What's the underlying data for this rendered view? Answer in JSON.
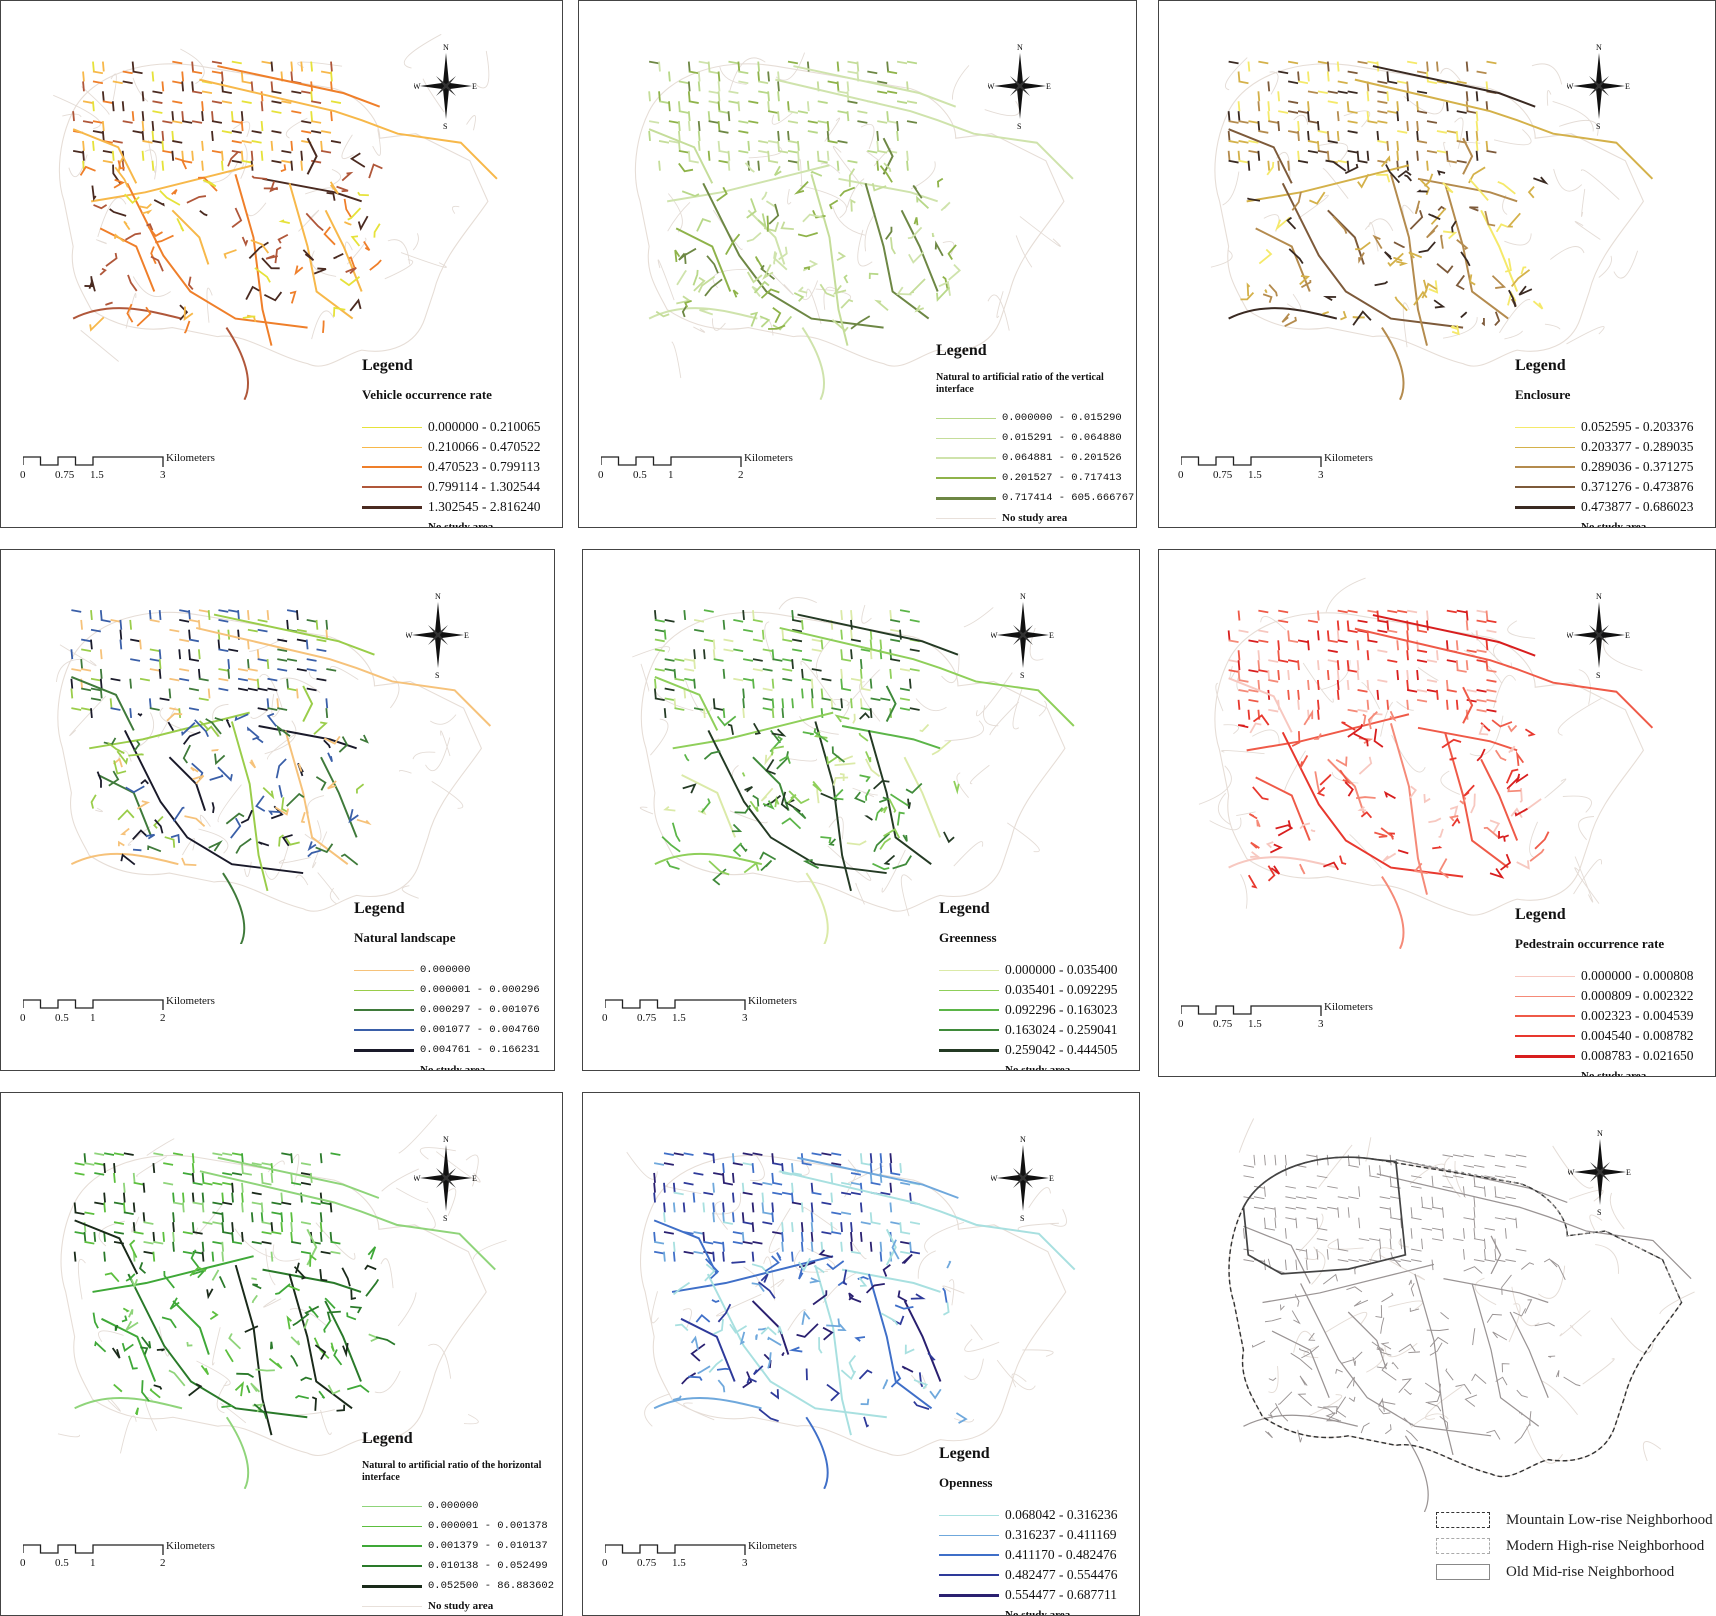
{
  "common": {
    "legend_title": "Legend",
    "no_study_area": "No study area",
    "compass": {
      "n": "N",
      "s": "S",
      "e": "E",
      "w": "W"
    },
    "scale_unit": "Kilometers"
  },
  "panels": [
    {
      "id": "vehicle",
      "subtitle": "Vehicle occurrence rate",
      "classes": [
        "0.000000 - 0.210065",
        "0.210066 - 0.470522",
        "0.470523 - 0.799113",
        "0.799114 - 1.302544",
        "1.302545 - 2.816240"
      ],
      "colors": [
        "#e6e23a",
        "#f7b84a",
        "#ef7f2a",
        "#b0573a",
        "#4a2a20"
      ],
      "scale_labels": [
        "0",
        "0.75",
        "1.5",
        "3"
      ]
    },
    {
      "id": "vertical-interface",
      "subtitle": "Natural to artificial ratio of the vertical interface",
      "classes": [
        "0.000000 - 0.015290",
        "0.015291 - 0.064880",
        "0.064881 - 0.201526",
        "0.201527 - 0.717413",
        "0.717414 - 605.666767"
      ],
      "colors": [
        "#b8d889",
        "#c5dd9a",
        "#cfe3ac",
        "#8fb34a",
        "#6d8744"
      ],
      "scale_labels": [
        "0",
        "0.5",
        "1",
        "2"
      ]
    },
    {
      "id": "enclosure",
      "subtitle": "Enclosure",
      "classes": [
        "0.052595 - 0.203376",
        "0.203377 - 0.289035",
        "0.289036 - 0.371275",
        "0.371276 - 0.473876",
        "0.473877 - 0.686023"
      ],
      "colors": [
        "#f5e96a",
        "#d4b14a",
        "#b48b4e",
        "#7d5a3a",
        "#3a2a22"
      ],
      "scale_labels": [
        "0",
        "0.75",
        "1.5",
        "3"
      ]
    },
    {
      "id": "natural-landscape",
      "subtitle": "Natural landscape",
      "classes": [
        "0.000000",
        "0.000001 - 0.000296",
        "0.000297 - 0.001076",
        "0.001077 - 0.004760",
        "0.004761 - 0.166231"
      ],
      "colors": [
        "#f6c27a",
        "#9acd4a",
        "#3f7a3a",
        "#3a5fa8",
        "#1a1a2a"
      ],
      "scale_labels": [
        "0",
        "0.5",
        "1",
        "2"
      ]
    },
    {
      "id": "greenness",
      "subtitle": "Greenness",
      "classes": [
        "0.000000 - 0.035400",
        "0.035401 - 0.092295",
        "0.092296 - 0.163023",
        "0.163024 - 0.259041",
        "0.259042 - 0.444505"
      ],
      "colors": [
        "#dbeaa8",
        "#8fcf5a",
        "#5bb548",
        "#3f8a3a",
        "#243a24"
      ],
      "scale_labels": [
        "0",
        "0.75",
        "1.5",
        "3"
      ]
    },
    {
      "id": "pedestrian",
      "subtitle": "Pedestrain occurrence rate",
      "classes": [
        "0.000000 - 0.000808",
        "0.000809 - 0.002322",
        "0.002323 - 0.004539",
        "0.004540 - 0.008782",
        "0.008783 - 0.021650"
      ],
      "colors": [
        "#f7c8c0",
        "#f58a78",
        "#ef5a48",
        "#e8382e",
        "#d81e1e"
      ],
      "scale_labels": [
        "0",
        "0.75",
        "1.5",
        "3"
      ]
    },
    {
      "id": "horizontal-interface",
      "subtitle": "Natural to artificial ratio of the horizontal interface",
      "classes": [
        "0.000000",
        "0.000001 - 0.001378",
        "0.001379 - 0.010137",
        "0.010138 - 0.052499",
        "0.052500 - 86.883602"
      ],
      "colors": [
        "#8fd47a",
        "#5cbf3e",
        "#3fa838",
        "#2a7a2a",
        "#1a2a1a"
      ],
      "scale_labels": [
        "0",
        "0.5",
        "1",
        "2"
      ]
    },
    {
      "id": "openness",
      "subtitle": "Openness",
      "classes": [
        "0.068042 - 0.316236",
        "0.316237 - 0.411169",
        "0.411170 - 0.482476",
        "0.482477 - 0.554476",
        "0.554477 - 0.687711"
      ],
      "colors": [
        "#a8e0e0",
        "#6fa8dc",
        "#3f6fc8",
        "#2e3a9a",
        "#2a2070"
      ],
      "scale_labels": [
        "0",
        "0.75",
        "1.5",
        "3"
      ]
    }
  ],
  "neighborhoods": {
    "items": [
      {
        "label": "Mountain Low-rise Neighborhood",
        "style": "dashed-dark"
      },
      {
        "label": "Modern High-rise Neighborhood",
        "style": "dashed-light"
      },
      {
        "label": "Old Mid-rise Neighborhood",
        "style": "solid"
      }
    ]
  }
}
